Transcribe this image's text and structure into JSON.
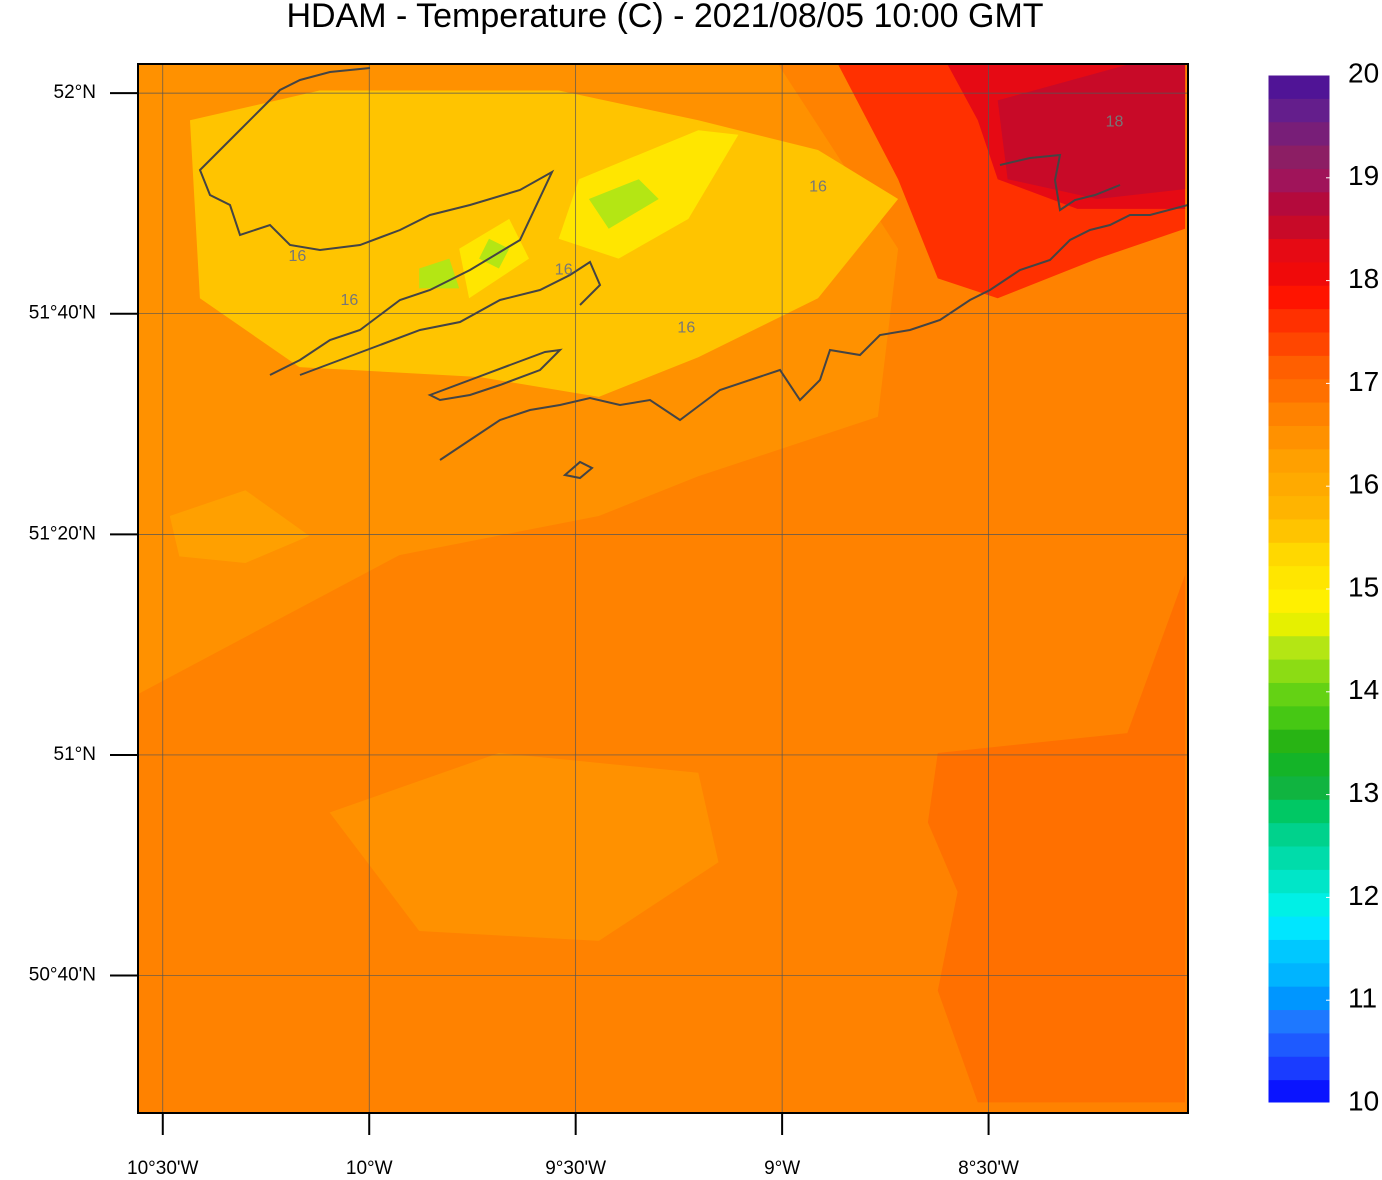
{
  "chart_data": {
    "type": "filled-contour-map",
    "title": "HDAM - Temperature (C)  -  2021/08/05  10:00 GMT",
    "xlim": [
      -10.56,
      -8.017
    ],
    "ylim": [
      50.459,
      52.044
    ],
    "xticks": [
      {
        "value": -10.5,
        "label": "10°30'W"
      },
      {
        "value": -10,
        "label": "10°W"
      },
      {
        "value": -9.5,
        "label": "9°30'W"
      },
      {
        "value": -9,
        "label": "9°W"
      },
      {
        "value": -8.5,
        "label": "8°30'W"
      }
    ],
    "yticks": [
      {
        "value": 52,
        "label": "52°N"
      },
      {
        "value": 51.6667,
        "label": "51°40'N"
      },
      {
        "value": 51.3333,
        "label": "51°20'N"
      },
      {
        "value": 51,
        "label": "51°N"
      },
      {
        "value": 50.6667,
        "label": "50°40'N"
      }
    ],
    "grid": true,
    "colorbar": {
      "min": 10,
      "max": 20,
      "ticks": [
        10,
        11,
        12,
        13,
        14,
        15,
        16,
        17,
        18,
        19,
        20
      ],
      "colors": [
        "#0a14ff",
        "#1a3cff",
        "#1e5aff",
        "#1e78ff",
        "#0096ff",
        "#00b4ff",
        "#00c8ff",
        "#00e6ff",
        "#00f0e6",
        "#00e6c8",
        "#00dcaa",
        "#00d28c",
        "#00c864",
        "#10b440",
        "#14b428",
        "#28b414",
        "#46c814",
        "#64d214",
        "#8cdc14",
        "#b4e614",
        "#e6f000",
        "#fff000",
        "#ffe600",
        "#ffd800",
        "#ffc400",
        "#ffb400",
        "#ffaa00",
        "#ffa000",
        "#ff9100",
        "#ff8200",
        "#ff7000",
        "#ff5f00",
        "#ff4600",
        "#ff3000",
        "#ff1400",
        "#f00a0a",
        "#e60a14",
        "#c80a28",
        "#b40a3c",
        "#a0145a",
        "#8c1e64",
        "#781e78",
        "#641e8c",
        "#501496"
      ]
    },
    "regions": [
      {
        "value": 16.6,
        "polygon": [
          [
            -10.56,
            52.044
          ],
          [
            -8.017,
            52.044
          ],
          [
            -8.017,
            50.459
          ],
          [
            -10.56,
            50.459
          ]
        ]
      },
      {
        "value": 16.4,
        "polygon": [
          [
            -10.56,
            52.043
          ],
          [
            -9.009,
            52.043
          ],
          [
            -8.719,
            51.765
          ],
          [
            -8.768,
            51.511
          ],
          [
            -9.203,
            51.421
          ],
          [
            -9.444,
            51.361
          ],
          [
            -9.927,
            51.302
          ],
          [
            -10.56,
            51.092
          ]
        ]
      },
      {
        "value": 16.4,
        "polygon": [
          [
            -10.096,
            50.913
          ],
          [
            -9.686,
            51.003
          ],
          [
            -9.203,
            50.973
          ],
          [
            -9.154,
            50.838
          ],
          [
            -9.444,
            50.719
          ],
          [
            -9.879,
            50.734
          ]
        ]
      },
      {
        "value": 16.2,
        "polygon": [
          [
            -10.483,
            51.361
          ],
          [
            -10.3,
            51.4
          ],
          [
            -10.145,
            51.331
          ],
          [
            -10.3,
            51.29
          ],
          [
            -10.46,
            51.3
          ]
        ]
      },
      {
        "value": 16.9,
        "polygon": [
          [
            -8.623,
            51.003
          ],
          [
            -8.164,
            51.033
          ],
          [
            -8.024,
            51.272
          ],
          [
            -8.024,
            50.475
          ],
          [
            -8.526,
            50.475
          ],
          [
            -8.623,
            50.644
          ],
          [
            -8.575,
            50.793
          ],
          [
            -8.647,
            50.898
          ]
        ]
      },
      {
        "value": 15.6,
        "polygon": [
          [
            -10.434,
            51.959
          ],
          [
            -10.12,
            52.004
          ],
          [
            -9.541,
            52.004
          ],
          [
            -9.203,
            51.959
          ],
          [
            -8.913,
            51.914
          ],
          [
            -8.719,
            51.84
          ],
          [
            -8.913,
            51.69
          ],
          [
            -9.203,
            51.601
          ],
          [
            -9.444,
            51.541
          ],
          [
            -9.734,
            51.571
          ],
          [
            -10.169,
            51.586
          ],
          [
            -10.41,
            51.69
          ]
        ]
      },
      {
        "value": 15.1,
        "polygon": [
          [
            -9.492,
            51.87
          ],
          [
            -9.203,
            51.944
          ],
          [
            -9.106,
            51.937
          ],
          [
            -9.227,
            51.81
          ],
          [
            -9.396,
            51.75
          ],
          [
            -9.541,
            51.78
          ]
        ]
      },
      {
        "value": 15.1,
        "polygon": [
          [
            -9.782,
            51.765
          ],
          [
            -9.661,
            51.81
          ],
          [
            -9.613,
            51.75
          ],
          [
            -9.758,
            51.69
          ]
        ]
      },
      {
        "value": 14.5,
        "polygon": [
          [
            -9.468,
            51.84
          ],
          [
            -9.347,
            51.87
          ],
          [
            -9.299,
            51.84
          ],
          [
            -9.42,
            51.795
          ]
        ]
      },
      {
        "value": 14.5,
        "polygon": [
          [
            -9.879,
            51.735
          ],
          [
            -9.806,
            51.75
          ],
          [
            -9.782,
            51.705
          ],
          [
            -9.879,
            51.705
          ]
        ]
      },
      {
        "value": 14.5,
        "polygon": [
          [
            -9.71,
            51.78
          ],
          [
            -9.661,
            51.765
          ],
          [
            -9.686,
            51.735
          ],
          [
            -9.734,
            51.75
          ]
        ]
      },
      {
        "value": 17.5,
        "polygon": [
          [
            -8.864,
            52.043
          ],
          [
            -8.024,
            52.043
          ],
          [
            -8.024,
            51.795
          ],
          [
            -8.236,
            51.75
          ],
          [
            -8.478,
            51.69
          ],
          [
            -8.623,
            51.72
          ],
          [
            -8.719,
            51.87
          ]
        ]
      },
      {
        "value": 18.3,
        "polygon": [
          [
            -8.599,
            52.043
          ],
          [
            -8.024,
            52.043
          ],
          [
            -8.024,
            51.825
          ],
          [
            -8.285,
            51.825
          ],
          [
            -8.478,
            51.87
          ],
          [
            -8.526,
            51.959
          ]
        ]
      },
      {
        "value": 18.6,
        "polygon": [
          [
            -8.478,
            51.989
          ],
          [
            -8.164,
            52.043
          ],
          [
            -8.024,
            52.043
          ],
          [
            -8.024,
            51.855
          ],
          [
            -8.236,
            51.84
          ],
          [
            -8.454,
            51.87
          ]
        ]
      }
    ],
    "contour_labels": [
      {
        "value": 16,
        "lon": -10.174,
        "lat": 51.753
      },
      {
        "value": 16,
        "lon": -10.048,
        "lat": 51.686
      },
      {
        "value": 16,
        "lon": -9.529,
        "lat": 51.732
      },
      {
        "value": 16,
        "lon": -9.232,
        "lat": 51.645
      },
      {
        "value": 16,
        "lon": -8.913,
        "lat": 51.858
      },
      {
        "value": 18,
        "lon": -8.195,
        "lat": 51.956
      }
    ]
  }
}
